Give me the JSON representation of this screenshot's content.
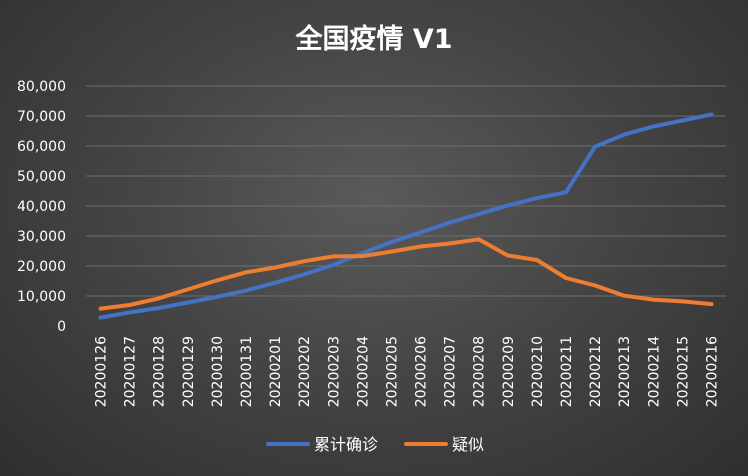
{
  "chart_data": {
    "type": "line",
    "title": "全国疫情 V1",
    "xlabel": "",
    "ylabel": "",
    "categories": [
      "20200126",
      "20200127",
      "20200128",
      "20200129",
      "20200130",
      "20200131",
      "20200201",
      "20200202",
      "20200203",
      "20200204",
      "20200205",
      "20200206",
      "20200207",
      "20200208",
      "20200209",
      "20200210",
      "20200211",
      "20200212",
      "20200213",
      "20200214",
      "20200215",
      "20200216"
    ],
    "ylim": [
      0,
      80000
    ],
    "yticks": [
      "0",
      "10,000",
      "20,000",
      "30,000",
      "40,000",
      "50,000",
      "60,000",
      "70,000",
      "80,000"
    ],
    "grid": true,
    "legend_position": "bottom",
    "series": [
      {
        "name": "累计确诊",
        "color": "#4472c4",
        "values": [
          2800,
          4500,
          6000,
          7800,
          9700,
          11800,
          14400,
          17200,
          20400,
          24300,
          28000,
          31200,
          34500,
          37300,
          40200,
          42600,
          44600,
          59800,
          63800,
          66500,
          68500,
          70500
        ]
      },
      {
        "name": "疑似",
        "color": "#ed7d31",
        "values": [
          5800,
          7000,
          9200,
          12200,
          15200,
          17900,
          19500,
          21600,
          23200,
          23300,
          24800,
          26500,
          27500,
          28900,
          23500,
          22000,
          16000,
          13500,
          10100,
          8800,
          8200,
          7300
        ]
      }
    ]
  }
}
